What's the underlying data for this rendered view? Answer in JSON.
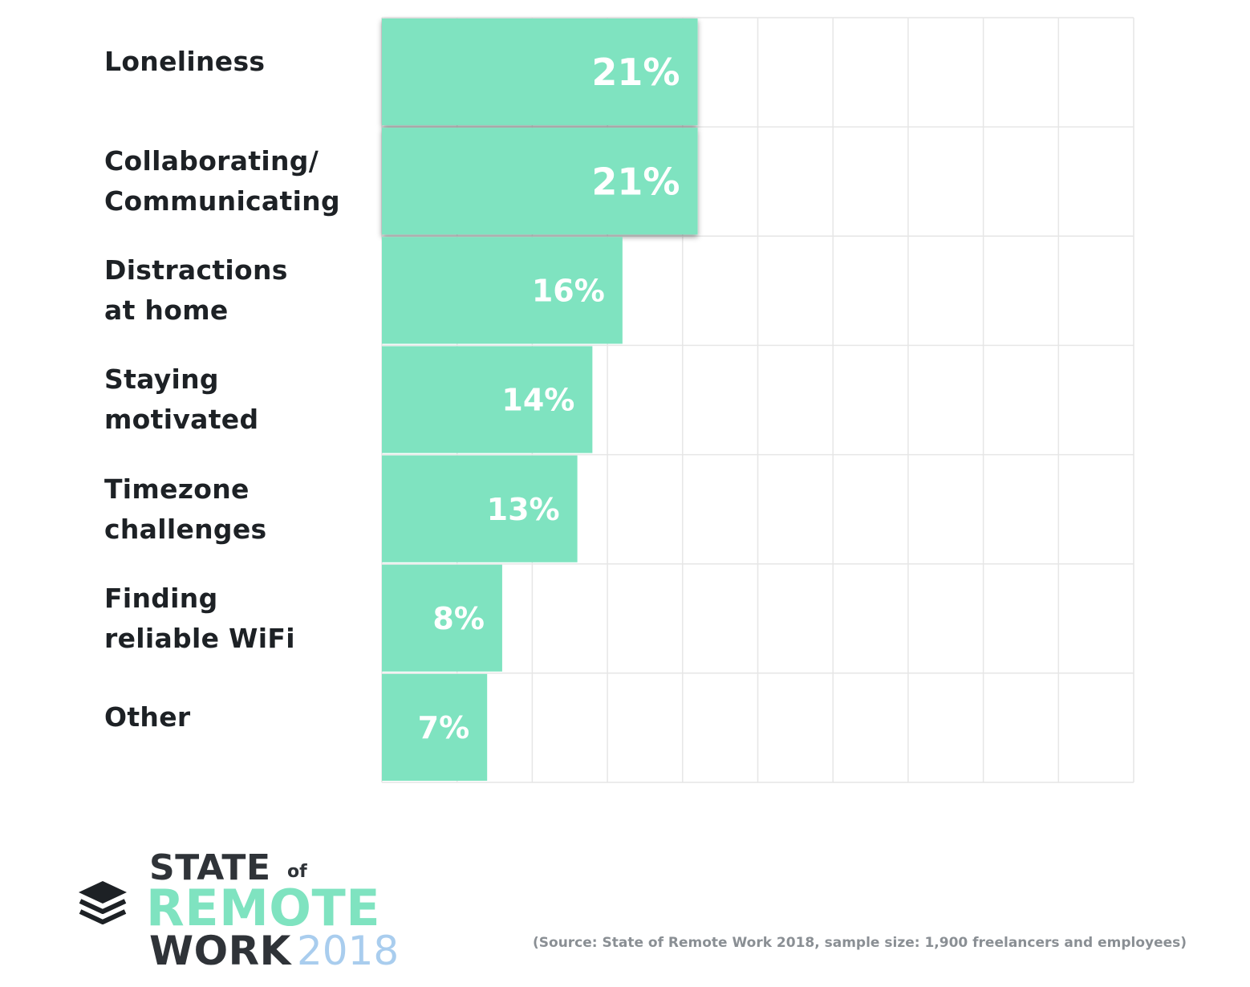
{
  "chart_data": {
    "type": "bar",
    "orientation": "horizontal",
    "categories": [
      "Loneliness",
      "Collaborating/\nCommunicating",
      "Distractions\nat home",
      "Staying\nmotivated",
      "Timezone\nchallenges",
      "Finding\nreliable WiFi",
      "Other"
    ],
    "values": [
      21,
      21,
      16,
      14,
      13,
      8,
      7
    ],
    "value_labels": [
      "21%",
      "21%",
      "16%",
      "14%",
      "13%",
      "8%",
      "7%"
    ],
    "highlighted": [
      true,
      true,
      false,
      false,
      false,
      false,
      false
    ],
    "unit": "%",
    "xlim": [
      0,
      50
    ],
    "grid": true,
    "colors": {
      "bar": "#7fe3c0",
      "grid": "#e6e6e6",
      "label": "#1d2125"
    }
  },
  "logo": {
    "state": "STATE",
    "of": "of",
    "remote": "REMOTE",
    "work": "WORK",
    "year": "2018",
    "icon": "stacked-layers-icon"
  },
  "source": "(Source: State of Remote Work 2018, sample size: 1,900 freelancers and employees)"
}
